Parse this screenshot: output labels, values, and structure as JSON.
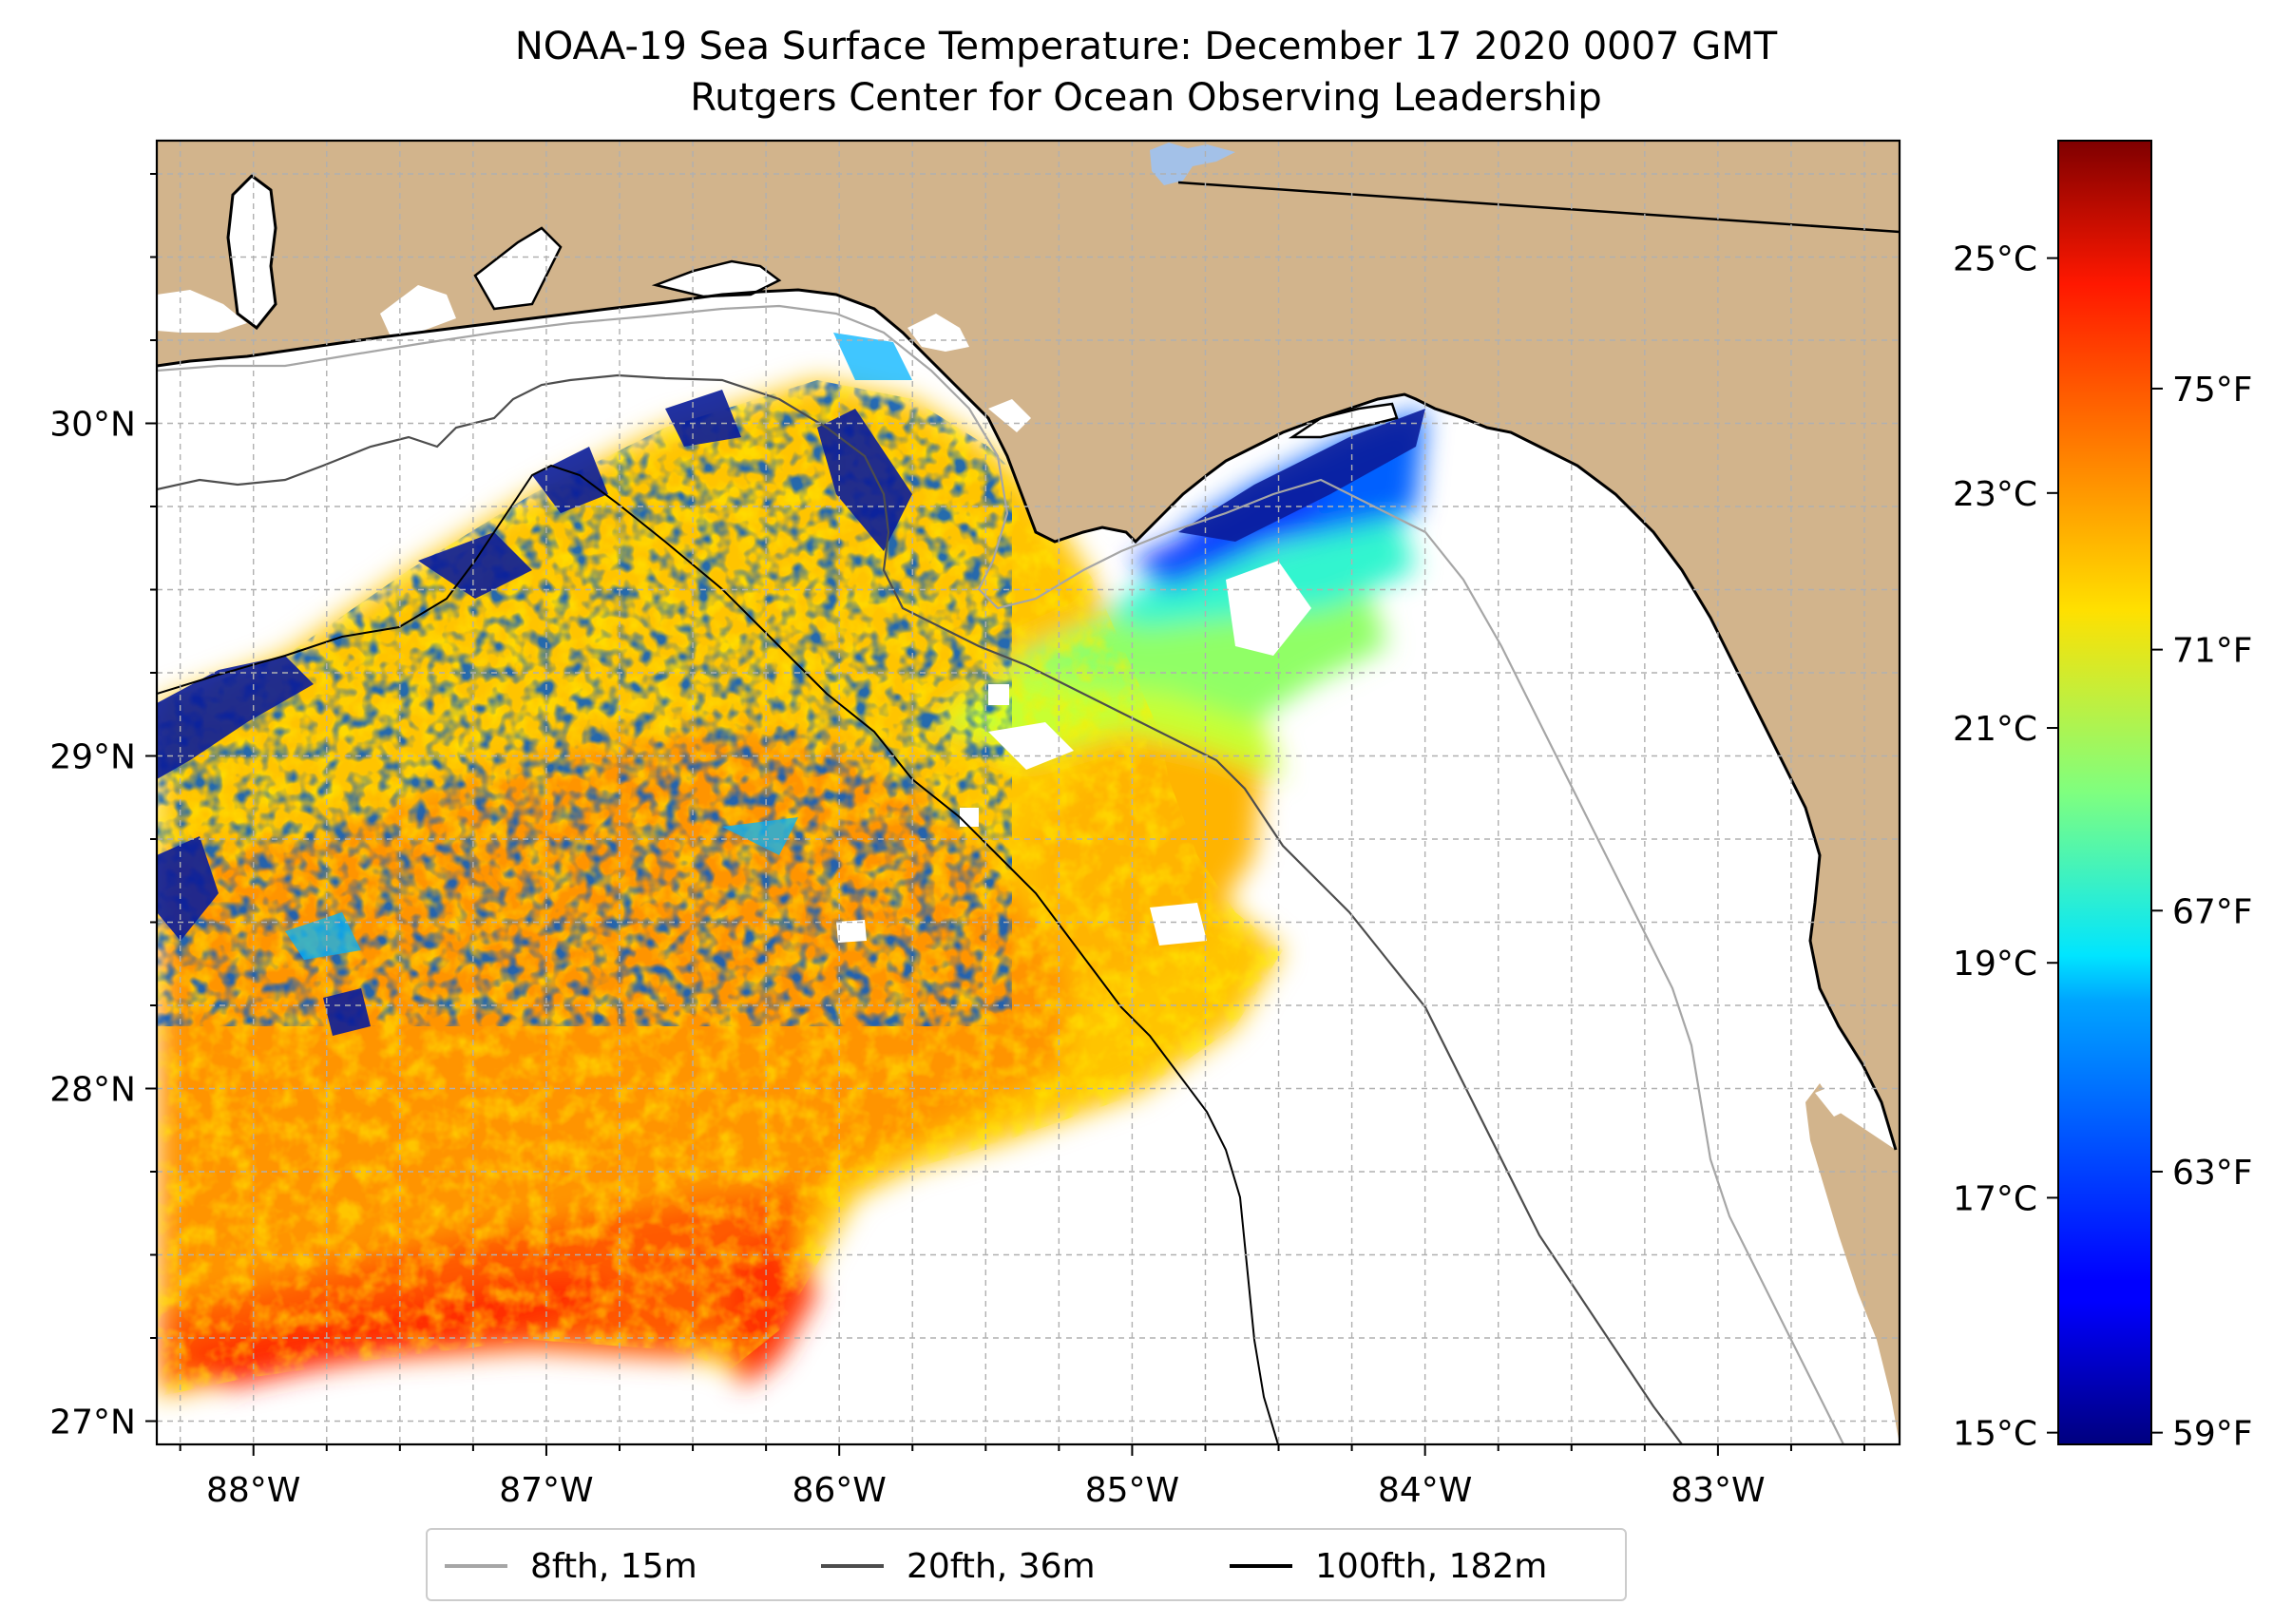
{
  "title": {
    "line1": "NOAA-19 Sea Surface Temperature: December 17 2020 0007 GMT",
    "line2": "Rutgers Center for Ocean Observing Leadership"
  },
  "map": {
    "lon_range": [
      -88.33,
      -82.38
    ],
    "lat_range": [
      26.93,
      30.85
    ],
    "lon_ticks": [
      {
        "value": -88,
        "label": "88°W"
      },
      {
        "value": -87,
        "label": "87°W"
      },
      {
        "value": -86,
        "label": "86°W"
      },
      {
        "value": -85,
        "label": "85°W"
      },
      {
        "value": -84,
        "label": "84°W"
      },
      {
        "value": -83,
        "label": "83°W"
      }
    ],
    "lat_ticks": [
      {
        "value": 27,
        "label": "27°N"
      },
      {
        "value": 28,
        "label": "28°N"
      },
      {
        "value": 29,
        "label": "29°N"
      },
      {
        "value": 30,
        "label": "30°N"
      }
    ],
    "colors": {
      "land": "#d2b48c",
      "no_data": "#ffffff",
      "coastline": "#000000",
      "lake": "#a3c1e8",
      "gridline": "#b0b0b0"
    }
  },
  "colorbar": {
    "colormap": "jet",
    "celsius_range": [
      14.9,
      26.0
    ],
    "celsius_ticks": [
      {
        "value": 15,
        "label": "15°C"
      },
      {
        "value": 17,
        "label": "17°C"
      },
      {
        "value": 19,
        "label": "19°C"
      },
      {
        "value": 21,
        "label": "21°C"
      },
      {
        "value": 23,
        "label": "23°C"
      },
      {
        "value": 25,
        "label": "25°C"
      }
    ],
    "fahrenheit_ticks": [
      {
        "value": 59,
        "label": "59°F"
      },
      {
        "value": 63,
        "label": "63°F"
      },
      {
        "value": 67,
        "label": "67°F"
      },
      {
        "value": 71,
        "label": "71°F"
      },
      {
        "value": 75,
        "label": "75°F"
      }
    ]
  },
  "legend": {
    "items": [
      {
        "label": "8fth, 15m",
        "color": "#a6a6a6"
      },
      {
        "label": "20fth, 36m",
        "color": "#4d4d4d"
      },
      {
        "label": "100fth, 182m",
        "color": "#000000"
      }
    ]
  }
}
